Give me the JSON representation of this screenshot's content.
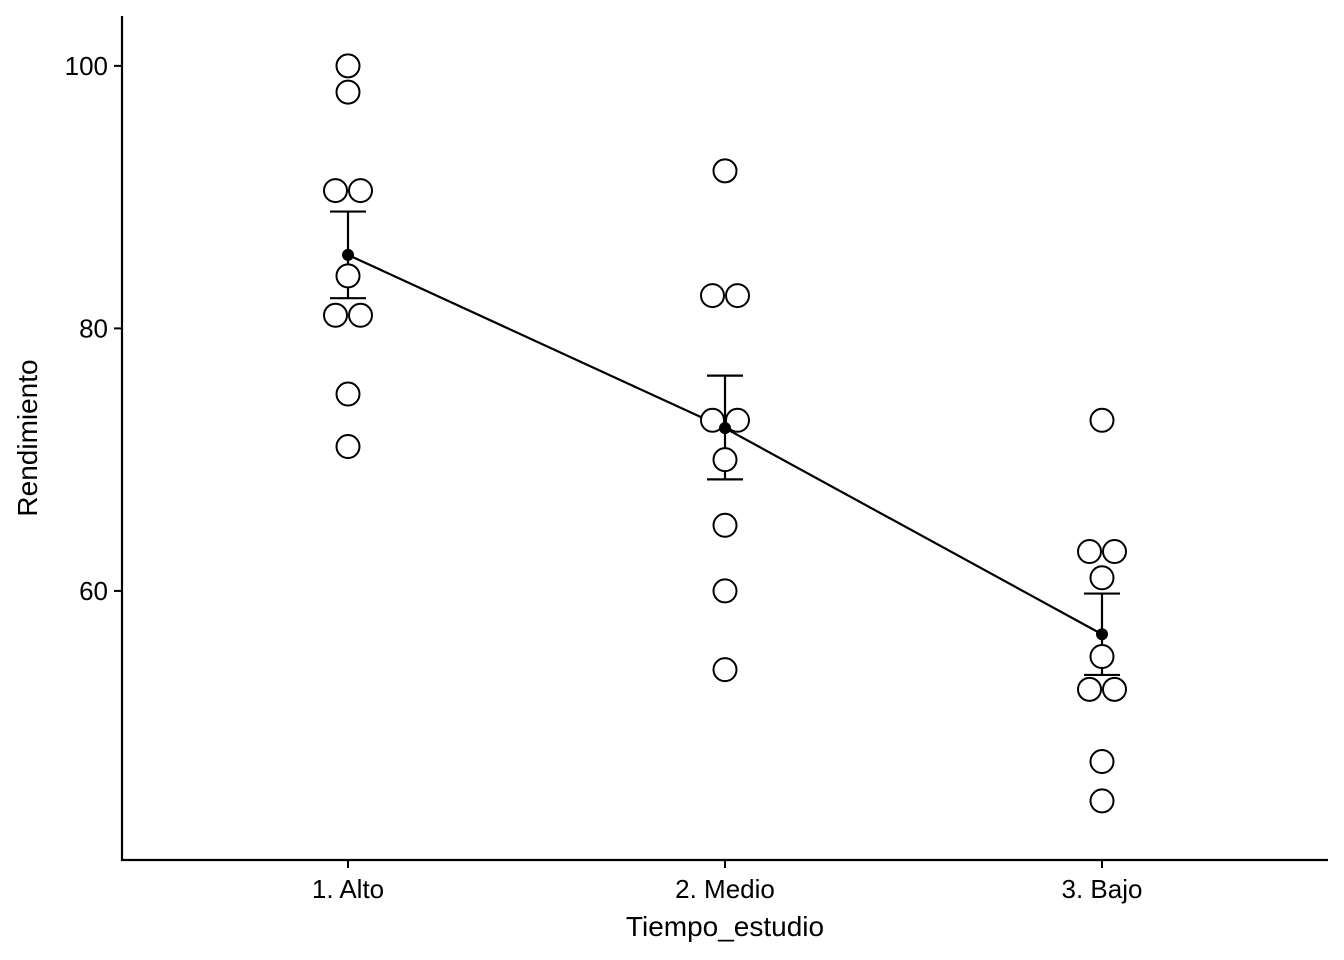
{
  "chart_data": {
    "type": "scatter",
    "title": "",
    "xlabel": "Tiempo_estudio",
    "ylabel": "Rendimiento",
    "categories": [
      "1. Alto",
      "2. Medio",
      "3. Bajo"
    ],
    "yticks": [
      60,
      80,
      100
    ],
    "ylim": [
      39.5,
      103.8
    ],
    "points": [
      [
        100,
        98,
        90.5,
        90.5,
        84,
        81,
        81,
        75,
        71
      ],
      [
        92,
        82.5,
        82.5,
        73,
        73,
        70,
        65,
        60,
        54
      ],
      [
        73,
        63,
        63,
        61,
        55,
        52.5,
        52.5,
        47,
        44
      ]
    ],
    "means": [
      85.6,
      72.4,
      56.7
    ],
    "error_low": [
      82.3,
      68.5,
      53.6
    ],
    "error_high": [
      88.9,
      76.4,
      59.8
    ],
    "colors": {
      "points_stroke": "#000000",
      "points_fill": "#ffffff",
      "line": "#000000"
    }
  }
}
